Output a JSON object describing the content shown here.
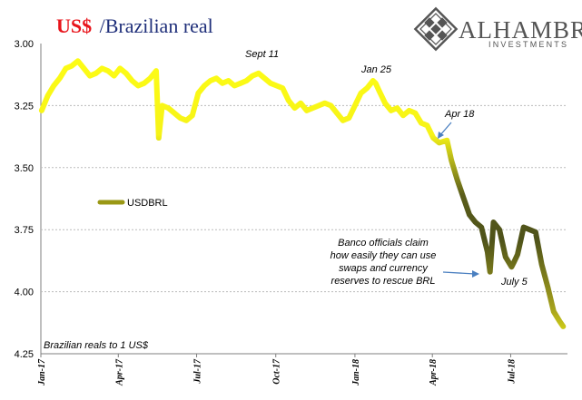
{
  "title": {
    "part1": "US$",
    "part2": "/Brazilian real"
  },
  "logo": {
    "name": "ALHAMBRA",
    "sub": "INVESTMENTS"
  },
  "chart_data": {
    "type": "line",
    "series": [
      {
        "name": "USDBRL",
        "x": [
          "2017-01-02",
          "2017-01-09",
          "2017-01-16",
          "2017-01-23",
          "2017-01-30",
          "2017-02-06",
          "2017-02-13",
          "2017-02-20",
          "2017-02-27",
          "2017-03-06",
          "2017-03-13",
          "2017-03-20",
          "2017-03-27",
          "2017-04-03",
          "2017-04-10",
          "2017-04-17",
          "2017-04-24",
          "2017-05-01",
          "2017-05-08",
          "2017-05-15",
          "2017-05-18",
          "2017-05-22",
          "2017-05-29",
          "2017-06-05",
          "2017-06-12",
          "2017-06-19",
          "2017-06-26",
          "2017-07-03",
          "2017-07-10",
          "2017-07-17",
          "2017-07-24",
          "2017-07-31",
          "2017-08-07",
          "2017-08-14",
          "2017-08-21",
          "2017-08-28",
          "2017-09-04",
          "2017-09-11",
          "2017-09-18",
          "2017-09-25",
          "2017-10-02",
          "2017-10-09",
          "2017-10-16",
          "2017-10-23",
          "2017-10-30",
          "2017-11-06",
          "2017-11-13",
          "2017-11-20",
          "2017-11-27",
          "2017-12-04",
          "2017-12-11",
          "2017-12-18",
          "2017-12-25",
          "2018-01-01",
          "2018-01-08",
          "2018-01-15",
          "2018-01-22",
          "2018-01-25",
          "2018-01-29",
          "2018-02-05",
          "2018-02-12",
          "2018-02-19",
          "2018-02-26",
          "2018-03-05",
          "2018-03-12",
          "2018-03-19",
          "2018-03-26",
          "2018-04-02",
          "2018-04-09",
          "2018-04-18",
          "2018-04-23",
          "2018-04-30",
          "2018-05-07",
          "2018-05-14",
          "2018-05-21",
          "2018-05-28",
          "2018-06-04",
          "2018-06-07",
          "2018-06-11",
          "2018-06-18",
          "2018-06-25",
          "2018-07-02",
          "2018-07-05",
          "2018-07-09",
          "2018-07-16",
          "2018-07-23",
          "2018-07-30",
          "2018-08-06",
          "2018-08-13",
          "2018-08-20",
          "2018-08-27",
          "2018-08-31"
        ],
        "y": [
          3.27,
          3.21,
          3.17,
          3.14,
          3.1,
          3.09,
          3.07,
          3.1,
          3.13,
          3.12,
          3.1,
          3.11,
          3.13,
          3.1,
          3.12,
          3.15,
          3.17,
          3.16,
          3.14,
          3.11,
          3.38,
          3.25,
          3.26,
          3.28,
          3.3,
          3.31,
          3.29,
          3.2,
          3.17,
          3.15,
          3.14,
          3.16,
          3.15,
          3.17,
          3.16,
          3.15,
          3.13,
          3.12,
          3.14,
          3.16,
          3.17,
          3.18,
          3.23,
          3.26,
          3.24,
          3.27,
          3.26,
          3.25,
          3.24,
          3.25,
          3.28,
          3.31,
          3.3,
          3.25,
          3.2,
          3.18,
          3.15,
          3.16,
          3.19,
          3.24,
          3.27,
          3.26,
          3.29,
          3.27,
          3.28,
          3.32,
          3.33,
          3.38,
          3.4,
          3.39,
          3.47,
          3.55,
          3.62,
          3.69,
          3.72,
          3.74,
          3.84,
          3.92,
          3.72,
          3.75,
          3.86,
          3.9,
          3.88,
          3.85,
          3.74,
          3.75,
          3.76,
          3.89,
          3.98,
          4.08,
          4.12,
          4.14
        ]
      }
    ],
    "xticks": [
      "Jan-17",
      "Apr-17",
      "Jul-17",
      "Oct-17",
      "Jan-18",
      "Apr-18",
      "Jul-18"
    ],
    "xtick_dates": [
      "2017-01-01",
      "2017-04-01",
      "2017-07-01",
      "2017-10-01",
      "2018-01-01",
      "2018-04-01",
      "2018-07-01"
    ],
    "yticks": [
      "3.00",
      "3.25",
      "3.50",
      "3.75",
      "4.00",
      "4.25"
    ],
    "ylim": [
      3.0,
      4.25
    ],
    "y_inverted": true,
    "xlim": [
      "2017-01-01",
      "2018-09-05"
    ],
    "grid": "horizontal dashed",
    "legend_position": "middle-left",
    "annotations": [
      {
        "text": "Sept 11"
      },
      {
        "text": "Jan 25"
      },
      {
        "text": "Apr 18"
      },
      {
        "text": "July 5"
      },
      {
        "text": "Banco officials claim",
        "text2": "how easily they can use",
        "text3": "swaps and currency",
        "text4": "reserves to rescue BRL"
      }
    ],
    "note": "Brazilian reals to 1 US$",
    "colors": {
      "light": "#ffff14",
      "dark": "#5a5d1a",
      "grid": "#bbbbbb",
      "arrow": "#4a7fc0"
    }
  }
}
